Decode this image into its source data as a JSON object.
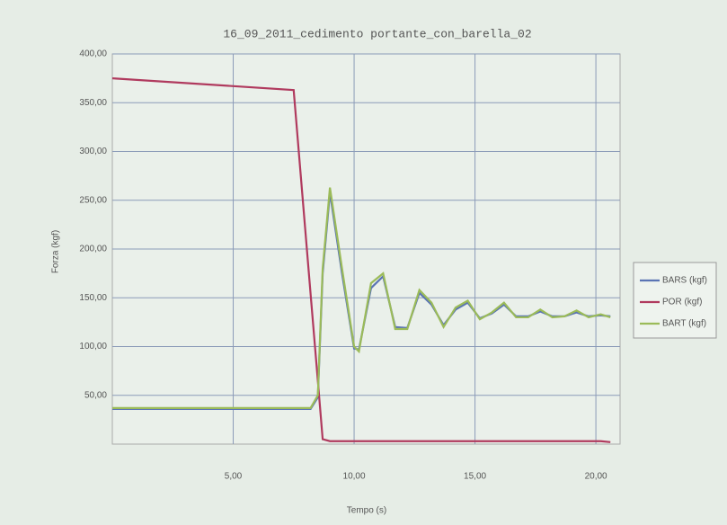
{
  "chart_data": {
    "type": "line",
    "title": "16_09_2011_cedimento portante_con_barella_02",
    "x_label": "Tempo (s)",
    "y_label": "Forza (kgf)",
    "x": [
      0,
      7.5,
      8.2,
      8.5,
      8.7,
      9,
      9.5,
      10,
      10.2,
      10.7,
      11.2,
      11.7,
      12.2,
      12.7,
      13.2,
      13.7,
      14.2,
      14.7,
      15.2,
      15.7,
      16.2,
      16.7,
      17.2,
      17.7,
      18.2,
      18.7,
      19.2,
      19.7,
      20.2,
      20.6
    ],
    "series": [
      {
        "name": "BARS (kgf)",
        "color": "#5a74b4",
        "values": [
          36,
          36,
          36,
          48,
          175,
          258,
          175,
          98,
          97,
          160,
          172,
          120,
          119,
          155,
          143,
          122,
          138,
          145,
          129,
          134,
          143,
          131,
          131,
          136,
          131,
          131,
          135,
          131,
          132,
          131
        ]
      },
      {
        "name": "POR (kgf)",
        "color": "#b03a5e",
        "values": [
          375,
          363,
          154,
          65,
          5,
          3,
          3,
          3,
          3,
          3,
          3,
          3,
          3,
          3,
          3,
          3,
          3,
          3,
          3,
          3,
          3,
          3,
          3,
          3,
          3,
          3,
          3,
          3,
          3,
          2
        ]
      },
      {
        "name": "BART (kgf)",
        "color": "#9bbb59",
        "values": [
          37,
          37,
          37,
          50,
          180,
          263,
          180,
          100,
          95,
          165,
          175,
          118,
          118,
          158,
          145,
          120,
          140,
          147,
          128,
          135,
          145,
          130,
          130,
          138,
          130,
          131,
          137,
          130,
          133,
          130
        ]
      }
    ],
    "xlim": [
      0,
      21
    ],
    "xticks": [
      {
        "value": 5,
        "label": "5,00"
      },
      {
        "value": 10,
        "label": "10,00"
      },
      {
        "value": 15,
        "label": "15,00"
      },
      {
        "value": 20,
        "label": "20,00"
      }
    ],
    "ylim": [
      0,
      400
    ],
    "yticks": [
      {
        "value": 50,
        "label": "50,00"
      },
      {
        "value": 100,
        "label": "100,00"
      },
      {
        "value": 150,
        "label": "150,00"
      },
      {
        "value": 200,
        "label": "200,00"
      },
      {
        "value": 250,
        "label": "250,00"
      },
      {
        "value": 300,
        "label": "300,00"
      },
      {
        "value": 350,
        "label": "350,00"
      },
      {
        "value": 400,
        "label": "400,00"
      }
    ],
    "grid": true,
    "legend": "right"
  }
}
